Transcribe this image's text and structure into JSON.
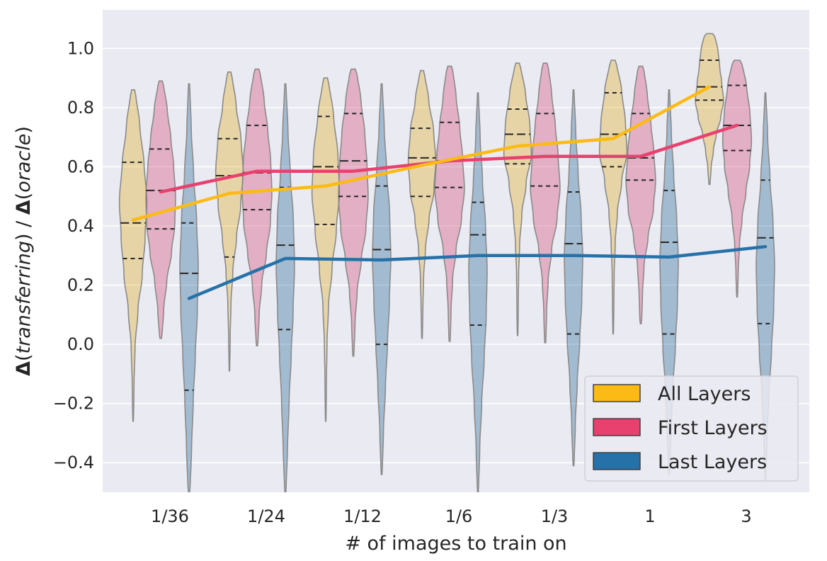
{
  "chart_data": {
    "type": "violin",
    "xlabel": "# of images to train on",
    "ylabel_parts": [
      "Δ",
      "(",
      "transferring",
      ")  /  ",
      "Δ",
      "(",
      "oracle",
      ")"
    ],
    "categories": [
      "1/36",
      "1/24",
      "1/12",
      "1/6",
      "1/3",
      "1",
      "3"
    ],
    "ylim": [
      -0.5,
      1.13
    ],
    "yticks": [
      -0.4,
      -0.2,
      0.0,
      0.2,
      0.4,
      0.6,
      0.8,
      1.0
    ],
    "ytick_labels": [
      "−0.4",
      "−0.2",
      "0.0",
      "0.2",
      "0.4",
      "0.6",
      "0.8",
      "1.0"
    ],
    "grid": true,
    "legend_position": "lower-right",
    "series": [
      {
        "name": "All Layers",
        "fill": "#e0b02a",
        "line_color": "#fbbb14",
        "mean_line": [
          0.42,
          0.51,
          0.535,
          0.605,
          0.67,
          0.695,
          0.87
        ],
        "violins": [
          {
            "min": -0.26,
            "max": 0.86,
            "q1": 0.29,
            "median": 0.41,
            "q3": 0.615,
            "profile": [
              0.05,
              0.08,
              0.15,
              0.35,
              0.65,
              0.85,
              1.0,
              0.85,
              0.6,
              0.3
            ]
          },
          {
            "min": -0.09,
            "max": 0.92,
            "q1": 0.295,
            "median": 0.57,
            "q3": 0.695,
            "profile": [
              0.04,
              0.07,
              0.12,
              0.25,
              0.5,
              0.8,
              1.0,
              0.9,
              0.6,
              0.3
            ]
          },
          {
            "min": -0.26,
            "max": 0.9,
            "q1": 0.405,
            "median": 0.6,
            "q3": 0.77,
            "profile": [
              0.04,
              0.06,
              0.1,
              0.2,
              0.45,
              0.75,
              1.0,
              0.95,
              0.7,
              0.35
            ]
          },
          {
            "min": 0.02,
            "max": 0.925,
            "q1": 0.5,
            "median": 0.63,
            "q3": 0.73,
            "profile": [
              0.05,
              0.08,
              0.12,
              0.25,
              0.5,
              0.85,
              1.0,
              0.9,
              0.6,
              0.3
            ]
          },
          {
            "min": 0.03,
            "max": 0.95,
            "q1": 0.61,
            "median": 0.71,
            "q3": 0.795,
            "profile": [
              0.04,
              0.06,
              0.08,
              0.15,
              0.3,
              0.6,
              1.0,
              0.95,
              0.7,
              0.35
            ]
          },
          {
            "min": 0.035,
            "max": 0.96,
            "q1": 0.6,
            "median": 0.71,
            "q3": 0.85,
            "profile": [
              0.04,
              0.06,
              0.08,
              0.15,
              0.3,
              0.6,
              1.0,
              0.95,
              0.75,
              0.4
            ]
          },
          {
            "min": 0.54,
            "max": 1.05,
            "q1": 0.825,
            "median": 0.87,
            "q3": 0.96,
            "profile": [
              0.08,
              0.15,
              0.3,
              0.5,
              0.8,
              1.0,
              0.9,
              0.8,
              0.75,
              0.6
            ]
          }
        ]
      },
      {
        "name": "First Layers",
        "fill": "#d64f7a",
        "line_color": "#e8416f",
        "mean_line": [
          0.515,
          0.585,
          0.585,
          0.62,
          0.635,
          0.635,
          0.74
        ],
        "violins": [
          {
            "min": 0.02,
            "max": 0.89,
            "q1": 0.39,
            "median": 0.52,
            "q3": 0.66,
            "profile": [
              0.15,
              0.25,
              0.45,
              0.75,
              0.95,
              1.0,
              0.9,
              0.75,
              0.55,
              0.3
            ]
          },
          {
            "min": -0.005,
            "max": 0.93,
            "q1": 0.455,
            "median": 0.58,
            "q3": 0.74,
            "profile": [
              0.1,
              0.18,
              0.35,
              0.65,
              0.9,
              1.0,
              0.95,
              0.8,
              0.6,
              0.35
            ]
          },
          {
            "min": -0.04,
            "max": 0.93,
            "q1": 0.5,
            "median": 0.62,
            "q3": 0.78,
            "profile": [
              0.08,
              0.14,
              0.28,
              0.55,
              0.85,
              1.0,
              0.95,
              0.85,
              0.65,
              0.4
            ]
          },
          {
            "min": 0.01,
            "max": 0.94,
            "q1": 0.53,
            "median": 0.62,
            "q3": 0.75,
            "profile": [
              0.08,
              0.12,
              0.22,
              0.45,
              0.8,
              1.0,
              0.9,
              0.75,
              0.55,
              0.35
            ]
          },
          {
            "min": 0.005,
            "max": 0.95,
            "q1": 0.535,
            "median": 0.635,
            "q3": 0.78,
            "profile": [
              0.08,
              0.12,
              0.22,
              0.45,
              0.8,
              1.0,
              0.9,
              0.75,
              0.55,
              0.35
            ]
          },
          {
            "min": 0.07,
            "max": 0.94,
            "q1": 0.555,
            "median": 0.63,
            "q3": 0.78,
            "profile": [
              0.1,
              0.14,
              0.24,
              0.5,
              0.85,
              1.0,
              0.9,
              0.75,
              0.55,
              0.35
            ]
          },
          {
            "min": 0.16,
            "max": 0.96,
            "q1": 0.655,
            "median": 0.74,
            "q3": 0.875,
            "profile": [
              0.06,
              0.1,
              0.18,
              0.35,
              0.6,
              0.85,
              1.0,
              0.95,
              0.8,
              0.55
            ]
          }
        ]
      },
      {
        "name": "Last Layers",
        "fill": "#2e6f9c",
        "line_color": "#2672a8",
        "mean_line": [
          0.155,
          0.29,
          0.285,
          0.3,
          0.3,
          0.295,
          0.33
        ],
        "violins": [
          {
            "min": -0.5,
            "max": 0.88,
            "q1": -0.155,
            "median": 0.24,
            "q3": 0.41,
            "profile": [
              0.2,
              0.35,
              0.5,
              0.7,
              0.9,
              1.0,
              0.85,
              0.55,
              0.3,
              0.15
            ]
          },
          {
            "min": -0.5,
            "max": 0.88,
            "q1": 0.05,
            "median": 0.335,
            "q3": 0.53,
            "profile": [
              0.15,
              0.3,
              0.45,
              0.65,
              0.85,
              1.0,
              0.9,
              0.6,
              0.35,
              0.15
            ]
          },
          {
            "min": -0.44,
            "max": 0.88,
            "q1": 0.0,
            "median": 0.32,
            "q3": 0.535,
            "profile": [
              0.12,
              0.25,
              0.45,
              0.65,
              0.85,
              1.0,
              0.9,
              0.6,
              0.35,
              0.15
            ]
          },
          {
            "min": -0.5,
            "max": 0.85,
            "q1": 0.065,
            "median": 0.37,
            "q3": 0.48,
            "profile": [
              0.12,
              0.25,
              0.45,
              0.7,
              0.9,
              1.0,
              0.85,
              0.55,
              0.3,
              0.12
            ]
          },
          {
            "min": -0.41,
            "max": 0.86,
            "q1": 0.035,
            "median": 0.34,
            "q3": 0.515,
            "profile": [
              0.12,
              0.25,
              0.45,
              0.7,
              0.9,
              1.0,
              0.85,
              0.55,
              0.3,
              0.12
            ]
          },
          {
            "min": -0.44,
            "max": 0.86,
            "q1": 0.035,
            "median": 0.345,
            "q3": 0.52,
            "profile": [
              0.12,
              0.25,
              0.45,
              0.7,
              0.9,
              1.0,
              0.85,
              0.55,
              0.3,
              0.12
            ]
          },
          {
            "min": -0.46,
            "max": 0.85,
            "q1": 0.07,
            "median": 0.36,
            "q3": 0.555,
            "profile": [
              0.1,
              0.22,
              0.42,
              0.68,
              0.9,
              1.0,
              0.85,
              0.55,
              0.3,
              0.12
            ]
          }
        ]
      }
    ]
  }
}
